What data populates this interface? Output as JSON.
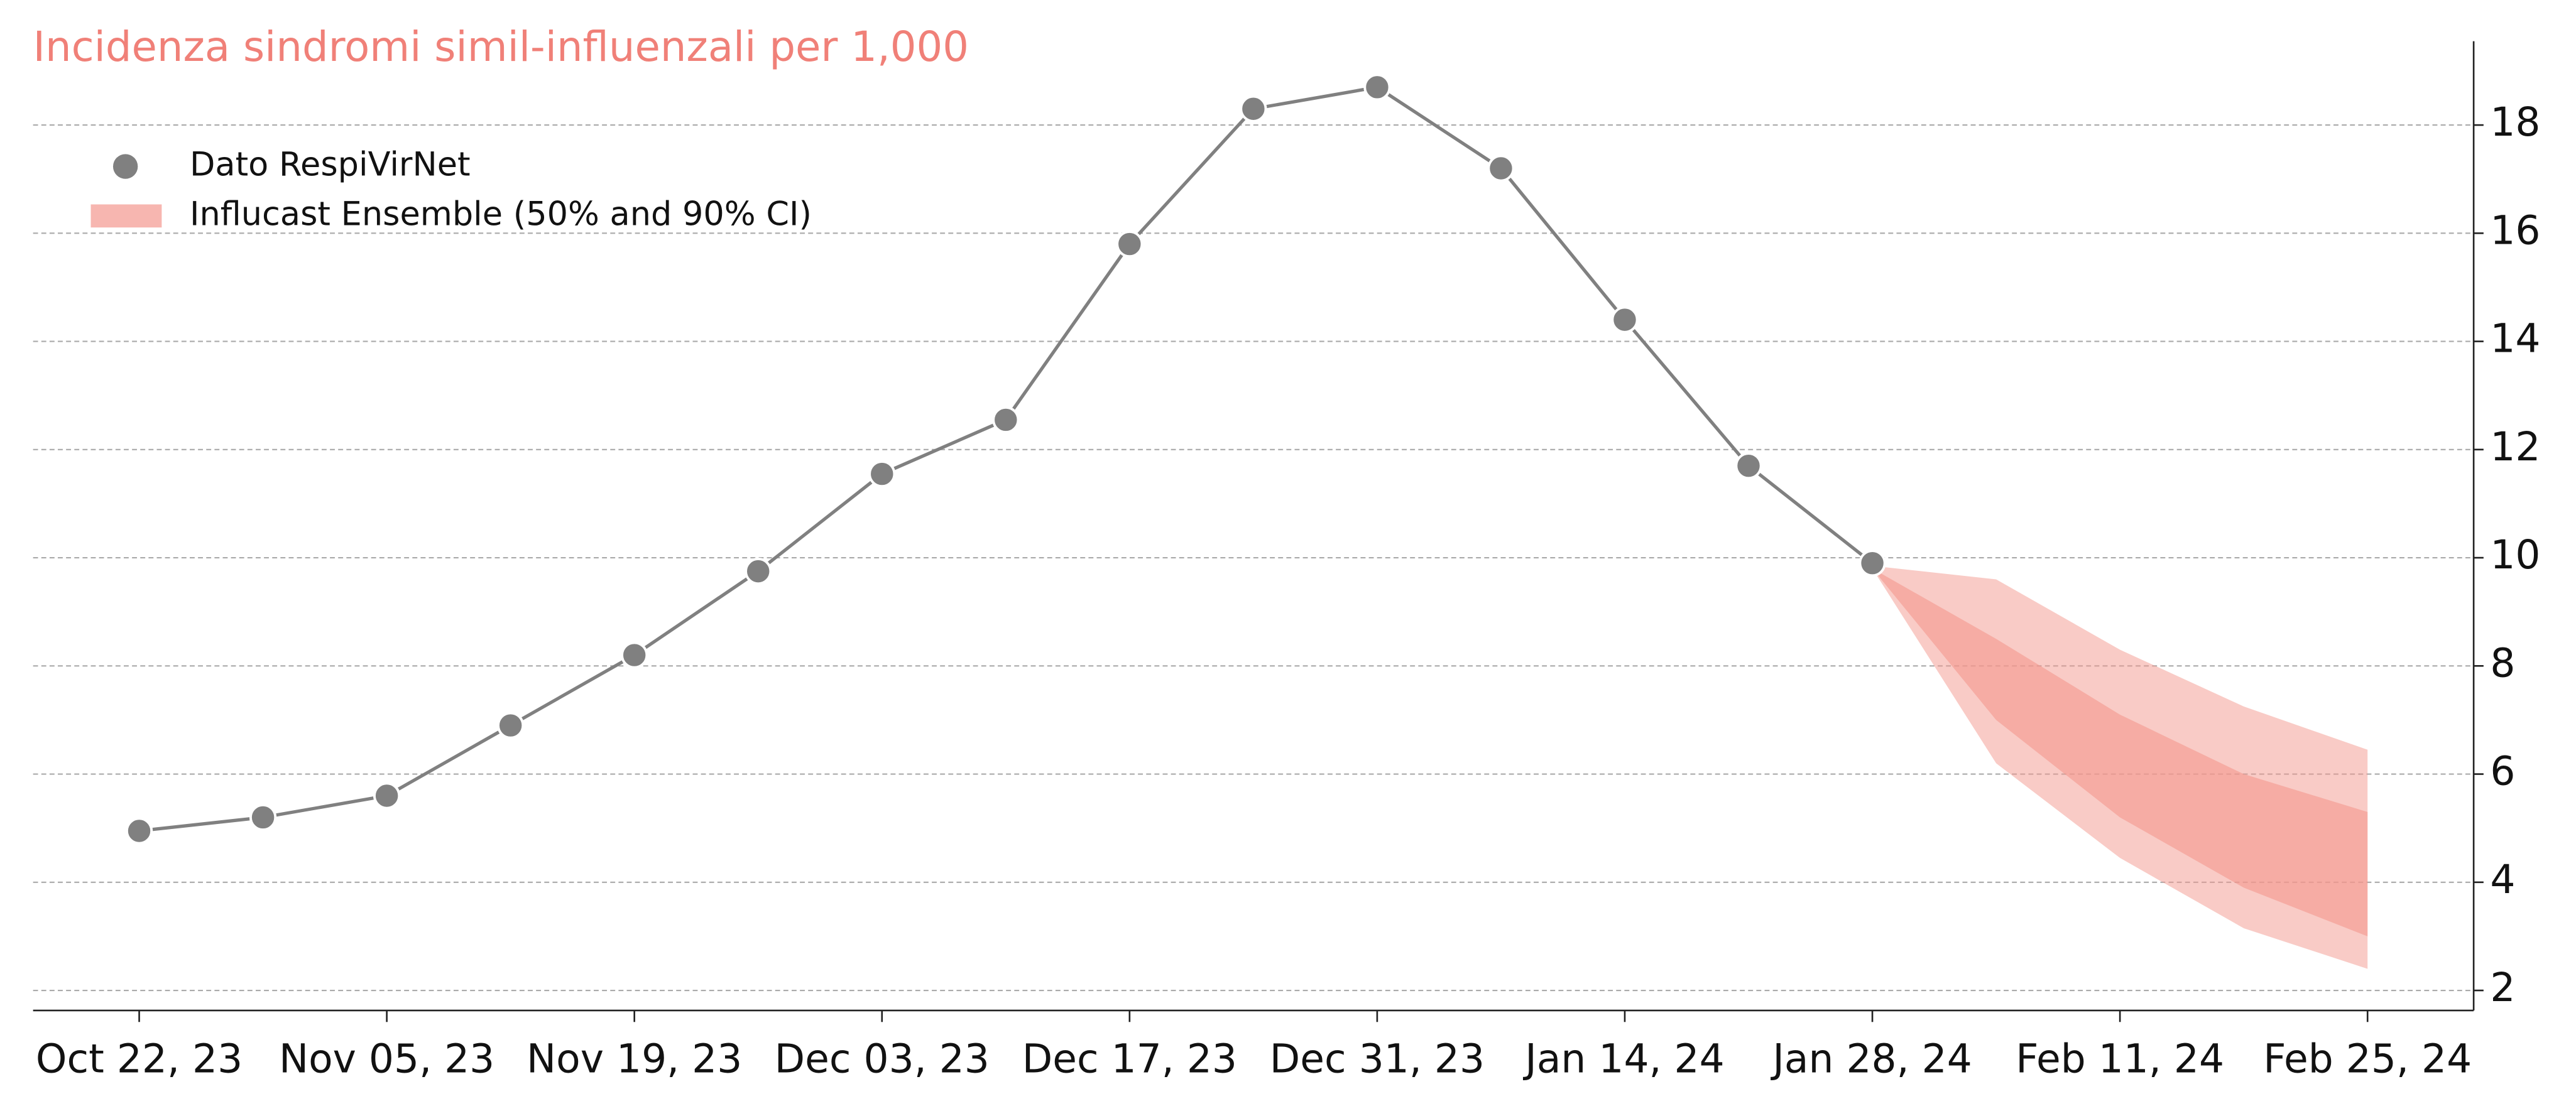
{
  "chart_data": {
    "type": "line",
    "title": "Incidenza sindromi simil-influenzali per 1,000",
    "title_color": "#f08078",
    "legend": "upper left",
    "grid": true,
    "y_axis_side": "right",
    "xlim": [
      "2023-10-16",
      "2024-03-02"
    ],
    "ylim": [
      1.63,
      19.55
    ],
    "yticks": [
      2,
      4,
      6,
      8,
      10,
      12,
      14,
      16,
      18
    ],
    "xticks": [
      {
        "value": "2023-10-22",
        "label": "Oct 22, 23"
      },
      {
        "value": "2023-11-05",
        "label": "Nov 05, 23"
      },
      {
        "value": "2023-11-19",
        "label": "Nov 19, 23"
      },
      {
        "value": "2023-12-03",
        "label": "Dec 03, 23"
      },
      {
        "value": "2023-12-17",
        "label": "Dec 17, 23"
      },
      {
        "value": "2023-12-31",
        "label": "Dec 31, 23"
      },
      {
        "value": "2024-01-14",
        "label": "Jan 14, 24"
      },
      {
        "value": "2024-01-28",
        "label": "Jan 28, 24"
      },
      {
        "value": "2024-02-11",
        "label": "Feb 11, 24"
      },
      {
        "value": "2024-02-25",
        "label": "Feb 25, 24"
      }
    ],
    "series": [
      {
        "name": "Dato RespiVirNet",
        "color": "#808080",
        "x": [
          "2023-10-22",
          "2023-10-29",
          "2023-11-05",
          "2023-11-12",
          "2023-11-19",
          "2023-11-26",
          "2023-12-03",
          "2023-12-10",
          "2023-12-17",
          "2023-12-24",
          "2023-12-31",
          "2024-01-07",
          "2024-01-14",
          "2024-01-21",
          "2024-01-28"
        ],
        "values": [
          4.95,
          5.2,
          5.6,
          6.9,
          8.2,
          9.75,
          11.55,
          12.55,
          15.8,
          18.3,
          18.7,
          17.2,
          14.4,
          11.7,
          9.9
        ]
      },
      {
        "name": "Influcast Ensemble (50% and 90% CI)",
        "type": "band",
        "color": "#f4978e",
        "x": [
          "2024-01-28",
          "2024-02-04",
          "2024-02-11",
          "2024-02-18",
          "2024-02-25"
        ],
        "lower90": [
          9.8,
          6.2,
          4.45,
          3.15,
          2.4
        ],
        "upper90": [
          9.85,
          9.6,
          8.3,
          7.25,
          6.45
        ],
        "lower50": [
          9.8,
          7.0,
          5.2,
          3.9,
          3.0
        ],
        "upper50": [
          9.8,
          8.5,
          7.1,
          6.0,
          5.3
        ]
      }
    ]
  }
}
